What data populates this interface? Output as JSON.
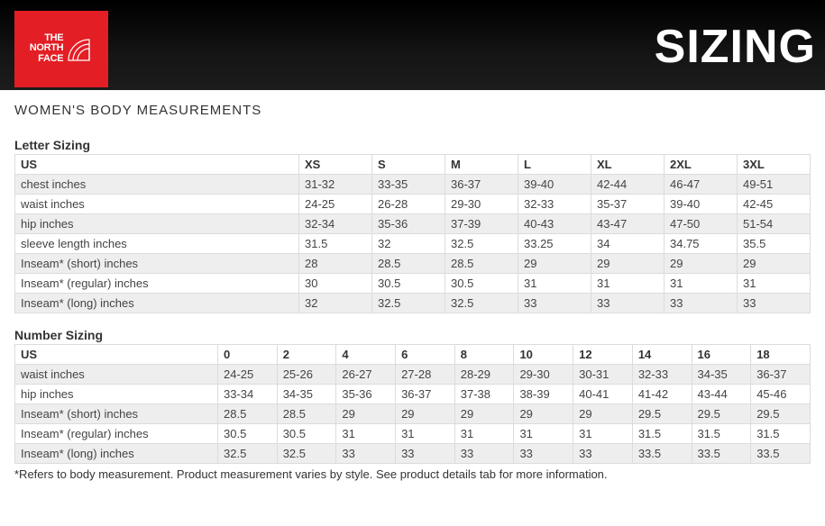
{
  "header": {
    "logo_line1": "THE",
    "logo_line2": "NORTH",
    "logo_line3": "FACE",
    "title": "SIZING",
    "header_bg": "linear-gradient(to bottom, #000000 0%, #151515 60%, #1c1c1c 100%)",
    "logo_bg": "#e31e24",
    "title_color": "#ffffff"
  },
  "page_title": "WOMEN'S BODY MEASUREMENTS",
  "letter_sizing": {
    "title": "Letter Sizing",
    "columns": [
      "US",
      "XS",
      "S",
      "M",
      "L",
      "XL",
      "2XL",
      "3XL"
    ],
    "rows": [
      [
        "chest inches",
        "31-32",
        "33-35",
        "36-37",
        "39-40",
        "42-44",
        "46-47",
        "49-51"
      ],
      [
        "waist inches",
        "24-25",
        "26-28",
        "29-30",
        "32-33",
        "35-37",
        "39-40",
        "42-45"
      ],
      [
        "hip inches",
        "32-34",
        "35-36",
        "37-39",
        "40-43",
        "43-47",
        "47-50",
        "51-54"
      ],
      [
        "sleeve length inches",
        "31.5",
        "32",
        "32.5",
        "33.25",
        "34",
        "34.75",
        "35.5"
      ],
      [
        "Inseam* (short) inches",
        "28",
        "28.5",
        "28.5",
        "29",
        "29",
        "29",
        "29"
      ],
      [
        "Inseam* (regular) inches",
        "30",
        "30.5",
        "30.5",
        "31",
        "31",
        "31",
        "31"
      ],
      [
        "Inseam* (long) inches",
        "32",
        "32.5",
        "32.5",
        "33",
        "33",
        "33",
        "33"
      ]
    ]
  },
  "number_sizing": {
    "title": "Number Sizing",
    "columns": [
      "US",
      "0",
      "2",
      "4",
      "6",
      "8",
      "10",
      "12",
      "14",
      "16",
      "18"
    ],
    "rows": [
      [
        "waist inches",
        "24-25",
        "25-26",
        "26-27",
        "27-28",
        "28-29",
        "29-30",
        "30-31",
        "32-33",
        "34-35",
        "36-37"
      ],
      [
        "hip inches",
        "33-34",
        "34-35",
        "35-36",
        "36-37",
        "37-38",
        "38-39",
        "40-41",
        "41-42",
        "43-44",
        "45-46"
      ],
      [
        "Inseam* (short) inches",
        "28.5",
        "28.5",
        "29",
        "29",
        "29",
        "29",
        "29",
        "29.5",
        "29.5",
        "29.5"
      ],
      [
        "Inseam* (regular) inches",
        "30.5",
        "30.5",
        "31",
        "31",
        "31",
        "31",
        "31",
        "31.5",
        "31.5",
        "31.5"
      ],
      [
        "Inseam* (long) inches",
        "32.5",
        "32.5",
        "33",
        "33",
        "33",
        "33",
        "33",
        "33.5",
        "33.5",
        "33.5"
      ]
    ]
  },
  "footnote": "*Refers to body measurement.  Product measurement varies by style.  See product details tab for more information.",
  "styles": {
    "row_alt_bg": "#eeeeee",
    "row_bg": "#ffffff",
    "border_color": "#dcdcdc",
    "text_color": "#444444",
    "header_text_color": "#333333",
    "body_font_size": 13,
    "title_font_size": 15,
    "section_font_size": 14
  }
}
